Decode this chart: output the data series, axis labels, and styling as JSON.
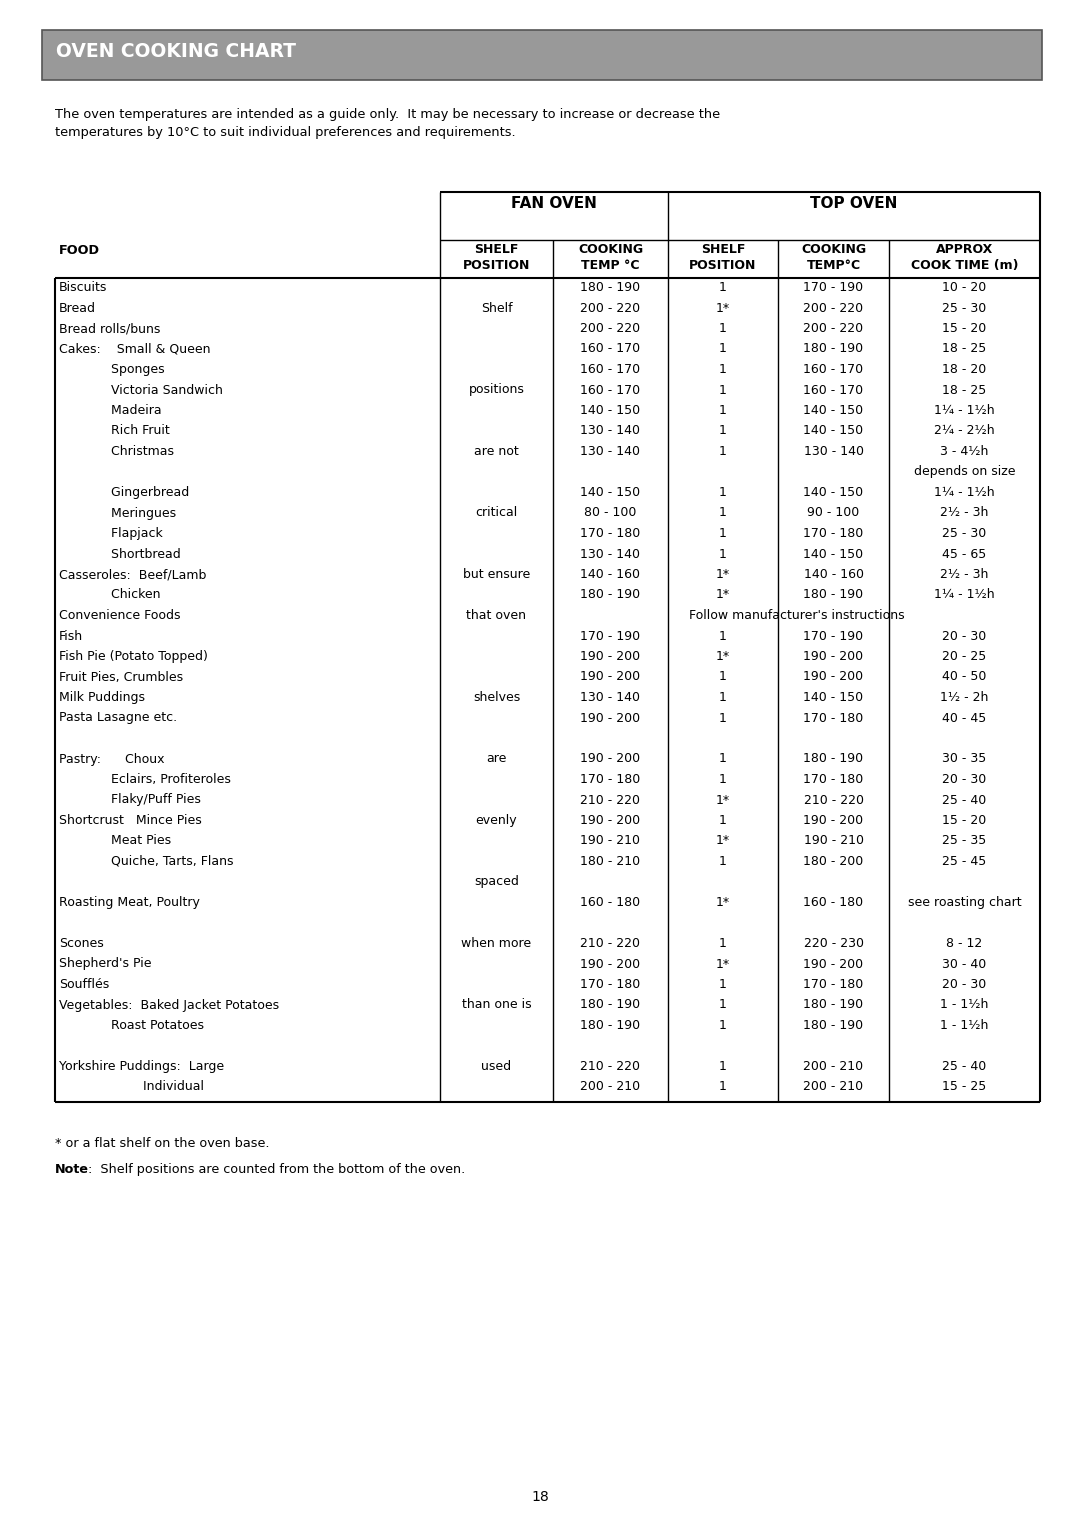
{
  "title": "OVEN COOKING CHART",
  "title_bg": "#999999",
  "title_border": "#666666",
  "intro_line1": "The oven temperatures are intended as a guide only.  It may be necessary to increase or decrease the",
  "intro_line2": "temperatures by 10°C to suit individual preferences and requirements.",
  "fan_oven_header": "FAN OVEN",
  "top_oven_header": "TOP OVEN",
  "rows": [
    [
      "Biscuits",
      "",
      "180 - 190",
      "1",
      "170 - 190",
      "10 - 20"
    ],
    [
      "Bread",
      "Shelf",
      "200 - 220",
      "1*",
      "200 - 220",
      "25 - 30"
    ],
    [
      "Bread rolls/buns",
      "",
      "200 - 220",
      "1",
      "200 - 220",
      "15 - 20"
    ],
    [
      "Cakes:    Small & Queen",
      "",
      "160 - 170",
      "1",
      "180 - 190",
      "18 - 25"
    ],
    [
      "             Sponges",
      "",
      "160 - 170",
      "1",
      "160 - 170",
      "18 - 20"
    ],
    [
      "             Victoria Sandwich",
      "positions",
      "160 - 170",
      "1",
      "160 - 170",
      "18 - 25"
    ],
    [
      "             Madeira",
      "",
      "140 - 150",
      "1",
      "140 - 150",
      "1¼ - 1½h"
    ],
    [
      "             Rich Fruit",
      "",
      "130 - 140",
      "1",
      "140 - 150",
      "2¼ - 2½h"
    ],
    [
      "             Christmas",
      "are not",
      "130 - 140",
      "1",
      "130 - 140",
      "3 - 4½h"
    ],
    [
      "",
      "",
      "",
      "",
      "",
      "depends on size"
    ],
    [
      "             Gingerbread",
      "",
      "140 - 150",
      "1",
      "140 - 150",
      "1¼ - 1½h"
    ],
    [
      "             Meringues",
      "critical",
      "80 - 100",
      "1",
      "90 - 100",
      "2½ - 3h"
    ],
    [
      "             Flapjack",
      "",
      "170 - 180",
      "1",
      "170 - 180",
      "25 - 30"
    ],
    [
      "             Shortbread",
      "",
      "130 - 140",
      "1",
      "140 - 150",
      "45 - 65"
    ],
    [
      "Casseroles:  Beef/Lamb",
      "but ensure",
      "140 - 160",
      "1*",
      "140 - 160",
      "2½ - 3h"
    ],
    [
      "             Chicken",
      "",
      "180 - 190",
      "1*",
      "180 - 190",
      "1¼ - 1½h"
    ],
    [
      "Convenience Foods",
      "that oven",
      "SPAN:Follow manufacturer's instructions",
      "",
      "",
      ""
    ],
    [
      "Fish",
      "",
      "170 - 190",
      "1",
      "170 - 190",
      "20 - 30"
    ],
    [
      "Fish Pie (Potato Topped)",
      "",
      "190 - 200",
      "1*",
      "190 - 200",
      "20 - 25"
    ],
    [
      "Fruit Pies, Crumbles",
      "",
      "190 - 200",
      "1",
      "190 - 200",
      "40 - 50"
    ],
    [
      "Milk Puddings",
      "shelves",
      "130 - 140",
      "1",
      "140 - 150",
      "1½ - 2h"
    ],
    [
      "Pasta Lasagne etc.",
      "",
      "190 - 200",
      "1",
      "170 - 180",
      "40 - 45"
    ],
    [
      "",
      "",
      "",
      "",
      "",
      ""
    ],
    [
      "Pastry:      Choux",
      "are",
      "190 - 200",
      "1",
      "180 - 190",
      "30 - 35"
    ],
    [
      "             Eclairs, Profiteroles",
      "",
      "170 - 180",
      "1",
      "170 - 180",
      "20 - 30"
    ],
    [
      "             Flaky/Puff Pies",
      "",
      "210 - 220",
      "1*",
      "210 - 220",
      "25 - 40"
    ],
    [
      "Shortcrust   Mince Pies",
      "evenly",
      "190 - 200",
      "1",
      "190 - 200",
      "15 - 20"
    ],
    [
      "             Meat Pies",
      "",
      "190 - 210",
      "1*",
      "190 - 210",
      "25 - 35"
    ],
    [
      "             Quiche, Tarts, Flans",
      "",
      "180 - 210",
      "1",
      "180 - 200",
      "25 - 45"
    ],
    [
      "",
      "spaced",
      "",
      "",
      "",
      ""
    ],
    [
      "Roasting Meat, Poultry",
      "",
      "160 - 180",
      "1*",
      "160 - 180",
      "see roasting chart"
    ],
    [
      "",
      "",
      "",
      "",
      "",
      ""
    ],
    [
      "Scones",
      "when more",
      "210 - 220",
      "1",
      "220 - 230",
      "8 - 12"
    ],
    [
      "Shepherd's Pie",
      "",
      "190 - 200",
      "1*",
      "190 - 200",
      "30 - 40"
    ],
    [
      "Soufflés",
      "",
      "170 - 180",
      "1",
      "170 - 180",
      "20 - 30"
    ],
    [
      "Vegetables:  Baked Jacket Potatoes",
      "than one is",
      "180 - 190",
      "1",
      "180 - 190",
      "1 - 1½h"
    ],
    [
      "             Roast Potatoes",
      "",
      "180 - 190",
      "1",
      "180 - 190",
      "1 - 1½h"
    ],
    [
      "",
      "",
      "",
      "",
      "",
      ""
    ],
    [
      "Yorkshire Puddings:  Large",
      "used",
      "210 - 220",
      "1",
      "200 - 210",
      "25 - 40"
    ],
    [
      "                     Individual",
      "",
      "200 - 210",
      "1",
      "200 - 210",
      "15 - 25"
    ]
  ],
  "footnote1": "* or a flat shelf on the oven base.",
  "footnote2_bold": "Note",
  "footnote2_rest": ":  Shelf positions are counted from the bottom of the oven.",
  "page_number": "18",
  "bg_color": "#ffffff"
}
